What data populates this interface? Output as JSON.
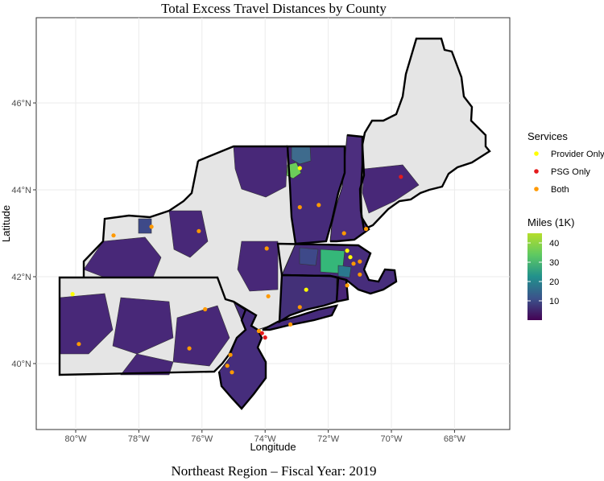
{
  "title": "Total Excess Travel Distances by County",
  "caption": "Northeast Region – Fiscal Year: 2019",
  "axes": {
    "xlabel": "Longitude",
    "ylabel": "Latitude",
    "x_ticks": [
      "80°W",
      "78°W",
      "76°W",
      "74°W",
      "72°W",
      "70°W",
      "68°W"
    ],
    "y_ticks": [
      "40°N",
      "42°N",
      "44°N",
      "46°N"
    ]
  },
  "legend_services": {
    "title": "Services",
    "items": [
      {
        "label": "Provider Only",
        "color": "#ffff00"
      },
      {
        "label": "PSG Only",
        "color": "#e41a1c"
      },
      {
        "label": "Both",
        "color": "#ff9900"
      }
    ]
  },
  "legend_miles": {
    "title": "Miles (1K)",
    "ticks": [
      "40",
      "30",
      "20",
      "10"
    ],
    "colors": [
      "#440154",
      "#3b528b",
      "#21918c",
      "#5ec962",
      "#b5de2b"
    ]
  },
  "chart_data": {
    "type": "map",
    "region": "Northeast United States",
    "xlim": [
      -81.2,
      -63.9
    ],
    "ylim": [
      38.8,
      47.6
    ],
    "fill_scale": {
      "name": "Miles (1K)",
      "min": 0,
      "max": 45
    },
    "points": [
      {
        "lon": -72.9,
        "lat": 44.5,
        "service": "Provider Only"
      },
      {
        "lon": -69.7,
        "lat": 44.3,
        "service": "PSG Only"
      },
      {
        "lon": -72.9,
        "lat": 43.6,
        "service": "Both"
      },
      {
        "lon": -72.3,
        "lat": 43.65,
        "service": "Both"
      },
      {
        "lon": -71.5,
        "lat": 43.0,
        "service": "Both"
      },
      {
        "lon": -70.8,
        "lat": 43.1,
        "service": "Both"
      },
      {
        "lon": -77.6,
        "lat": 43.15,
        "service": "Both"
      },
      {
        "lon": -78.8,
        "lat": 42.95,
        "service": "Both"
      },
      {
        "lon": -76.1,
        "lat": 43.05,
        "service": "Both"
      },
      {
        "lon": -73.95,
        "lat": 42.65,
        "service": "Both"
      },
      {
        "lon": -71.4,
        "lat": 42.6,
        "service": "Provider Only"
      },
      {
        "lon": -71.3,
        "lat": 42.45,
        "service": "Provider Only"
      },
      {
        "lon": -71.2,
        "lat": 42.3,
        "service": "Both"
      },
      {
        "lon": -71.0,
        "lat": 42.35,
        "service": "Both"
      },
      {
        "lon": -71.0,
        "lat": 42.05,
        "service": "Both"
      },
      {
        "lon": -71.4,
        "lat": 41.8,
        "service": "Both"
      },
      {
        "lon": -72.7,
        "lat": 41.7,
        "service": "Provider Only"
      },
      {
        "lon": -72.9,
        "lat": 41.3,
        "service": "Both"
      },
      {
        "lon": -73.2,
        "lat": 40.9,
        "service": "Both"
      },
      {
        "lon": -73.9,
        "lat": 41.55,
        "service": "Both"
      },
      {
        "lon": -80.1,
        "lat": 41.6,
        "service": "Provider Only"
      },
      {
        "lon": -75.9,
        "lat": 41.25,
        "service": "Both"
      },
      {
        "lon": -74.2,
        "lat": 40.75,
        "service": "Both"
      },
      {
        "lon": -74.0,
        "lat": 40.6,
        "service": "PSG Only"
      },
      {
        "lon": -74.1,
        "lat": 40.7,
        "service": "PSG Only"
      },
      {
        "lon": -79.9,
        "lat": 40.45,
        "service": "Both"
      },
      {
        "lon": -76.4,
        "lat": 40.35,
        "service": "Both"
      },
      {
        "lon": -75.1,
        "lat": 40.2,
        "service": "Both"
      },
      {
        "lon": -75.2,
        "lat": 39.95,
        "service": "Both"
      },
      {
        "lon": -75.05,
        "lat": 39.8,
        "service": "Both"
      }
    ]
  }
}
